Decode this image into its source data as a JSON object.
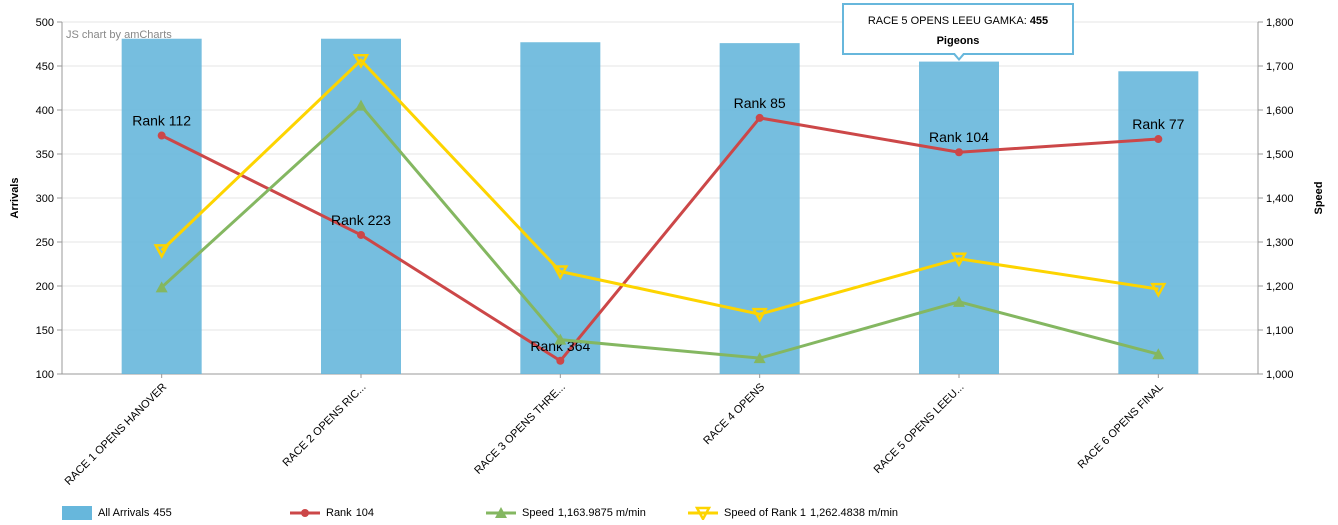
{
  "credit": "JS chart by amCharts",
  "tooltip": {
    "prefix": "RACE 5 OPENS LEEU GAMKA: ",
    "value": "455",
    "unit": "Pigeons"
  },
  "legend": [
    {
      "label": "All Arrivals",
      "value": "455",
      "color": "#67b7dc",
      "kind": "bar"
    },
    {
      "label": "Rank",
      "value": "104",
      "color": "#cc4748",
      "kind": "circle"
    },
    {
      "label": "Speed",
      "value": "1,163.9875 m/min",
      "color": "#84b761",
      "kind": "triangle-up"
    },
    {
      "label": "Speed of Rank 1",
      "value": "1,262.4838 m/min",
      "color": "#fdd400",
      "kind": "triangle-down"
    }
  ],
  "chart_data": {
    "type": "bar",
    "categories": [
      "RACE 1 OPENS HANOVER",
      "RACE 2 OPENS RIC...",
      "RACE 3 OPENS THRE...",
      "RACE 4 OPENS",
      "RACE 5 OPENS LEEU...",
      "RACE 6 OPENS FINAL"
    ],
    "left_axis": {
      "title": "Arrivals",
      "ylim": [
        100,
        500
      ],
      "ticks": [
        100,
        150,
        200,
        250,
        300,
        350,
        400,
        450,
        500
      ]
    },
    "right_axis": {
      "title": "Speed",
      "ylim": [
        1000,
        1800
      ],
      "ticks": [
        "1,000",
        "1,100",
        "1,200",
        "1,300",
        "1,400",
        "1,500",
        "1,600",
        "1,700",
        "1,800"
      ],
      "tick_values": [
        1000,
        1100,
        1200,
        1300,
        1400,
        1500,
        1600,
        1700,
        1800
      ]
    },
    "series": [
      {
        "name": "All Arrivals",
        "type": "bar",
        "axis": "left",
        "color": "#67b7dc",
        "values": [
          481,
          481,
          477,
          476,
          455,
          444
        ]
      },
      {
        "name": "Rank",
        "type": "line",
        "axis": "left",
        "color": "#cc4748",
        "marker": "circle",
        "values": [
          371,
          258,
          115,
          391,
          352,
          367
        ],
        "labels": [
          "Rank 112",
          "Rank 223",
          "Rank 364",
          "Rank 85",
          "Rank 104",
          "Rank 77"
        ]
      },
      {
        "name": "Speed",
        "type": "line",
        "axis": "right",
        "color": "#84b761",
        "marker": "triangle-up",
        "values": [
          1197,
          1610,
          1078,
          1036,
          1164,
          1045
        ]
      },
      {
        "name": "Speed of Rank 1",
        "type": "line",
        "axis": "right",
        "color": "#fdd400",
        "marker": "triangle-down",
        "values": [
          1281,
          1713,
          1233,
          1136,
          1262,
          1193
        ]
      }
    ],
    "grid": true
  }
}
